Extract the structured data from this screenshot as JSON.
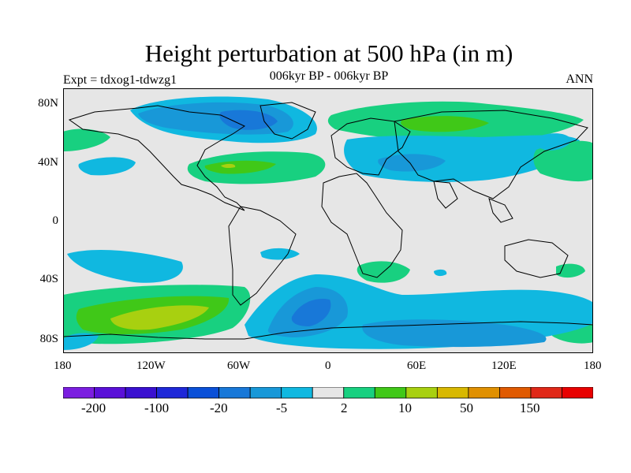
{
  "header": {
    "title": "Height perturbation at 500 hPa (in m)",
    "subtitle": "006kyr BP - 006kyr BP",
    "left_string": "Expt = tdxog1-tdwzg1",
    "right_string": "ANN"
  },
  "axes": {
    "x_ticks": [
      "180",
      "120W",
      "60W",
      "0",
      "60E",
      "120E",
      "180"
    ],
    "y_ticks": [
      "80N",
      "40N",
      "0",
      "40S",
      "80S"
    ]
  },
  "colorbar": {
    "labels": [
      "-200",
      "-100",
      "-20",
      "-5",
      "2",
      "10",
      "50",
      "150"
    ],
    "colors": [
      "#7b1ee0",
      "#5a10d8",
      "#3a10d0",
      "#1e28d8",
      "#0a50d8",
      "#1878d8",
      "#1898d8",
      "#10b8e0",
      "#e6e6e6",
      "#18d080",
      "#40c818",
      "#a8d010",
      "#d8b800",
      "#e09000",
      "#e05a00",
      "#e02818",
      "#e80000"
    ]
  },
  "chart_data": {
    "type": "heatmap",
    "title": "Height perturbation at 500 hPa (in m)",
    "subtitle": "006kyr BP - 006kyr BP",
    "xlim": [
      -180,
      180
    ],
    "ylim": [
      -90,
      90
    ],
    "x_ticks": [
      "180",
      "120W",
      "60W",
      "0",
      "60E",
      "120E",
      "180"
    ],
    "y_ticks": [
      "80N",
      "40N",
      "0",
      "40S",
      "80S"
    ],
    "colorbar_labels": [
      "-200",
      "-100",
      "-20",
      "-5",
      "2",
      "10",
      "50",
      "150"
    ],
    "regions": [
      {
        "lon": -90,
        "lat": 72,
        "value": -5
      },
      {
        "lon": -55,
        "lat": 68,
        "value": -20
      },
      {
        "lon": 60,
        "lat": 72,
        "value": 2
      },
      {
        "lon": 80,
        "lat": 45,
        "value": -5
      },
      {
        "lon": 70,
        "lat": 40,
        "value": -20
      },
      {
        "lon": -90,
        "lat": 38,
        "value": 2
      },
      {
        "lon": -70,
        "lat": 38,
        "value": 10
      },
      {
        "lon": -140,
        "lat": 40,
        "value": -5
      },
      {
        "lon": 160,
        "lat": 40,
        "value": 2
      },
      {
        "lon": -125,
        "lat": -70,
        "value": 10
      },
      {
        "lon": -25,
        "lat": -58,
        "value": -20
      },
      {
        "lon": 100,
        "lat": -68,
        "value": -5
      },
      {
        "lon": 40,
        "lat": -38,
        "value": 2
      }
    ]
  }
}
